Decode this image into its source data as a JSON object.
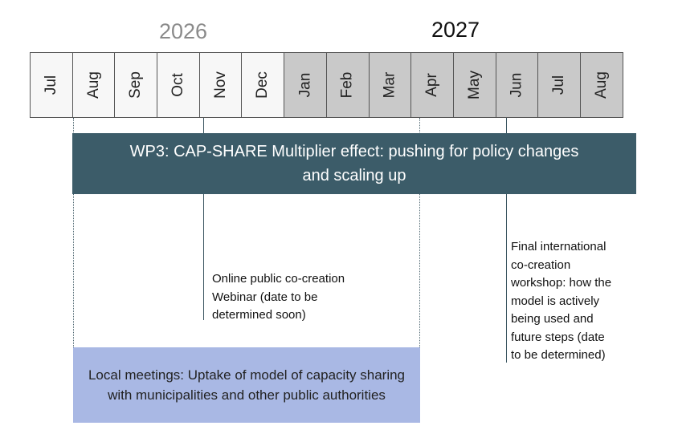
{
  "years": {
    "first": "2026",
    "second": "2027"
  },
  "months": [
    {
      "label": "Jul",
      "shade": "light"
    },
    {
      "label": "Aug",
      "shade": "light"
    },
    {
      "label": "Sep",
      "shade": "light"
    },
    {
      "label": "Oct",
      "shade": "light"
    },
    {
      "label": "Nov",
      "shade": "light"
    },
    {
      "label": "Dec",
      "shade": "light"
    },
    {
      "label": "Jan",
      "shade": "dark"
    },
    {
      "label": "Feb",
      "shade": "dark"
    },
    {
      "label": "Mar",
      "shade": "dark"
    },
    {
      "label": "Apr",
      "shade": "dark"
    },
    {
      "label": "May",
      "shade": "dark"
    },
    {
      "label": "Jun",
      "shade": "dark"
    },
    {
      "label": "Jul",
      "shade": "dark"
    },
    {
      "label": "Aug",
      "shade": "dark"
    }
  ],
  "wp3": {
    "label": "WP3: CAP-SHARE Multiplier effect: pushing for policy changes and scaling up"
  },
  "local_meetings": {
    "label": "Local meetings: Uptake of model of capacity sharing with municipalities and other public authorities"
  },
  "milestones": {
    "webinar": {
      "lines": [
        "Online public co-creation",
        "Webinar (date to be",
        "determined soon)"
      ]
    },
    "final_workshop": {
      "lines": [
        "Final international",
        "co-creation",
        "workshop: how the",
        "model is actively",
        "being used and",
        "future steps (date",
        "to be determined)"
      ]
    }
  },
  "colors": {
    "wp3_bar": "#3c5c69",
    "local_bar": "#a9b8e4",
    "month_2026": "#f7f7f7",
    "month_2027": "#c9c9c9"
  }
}
